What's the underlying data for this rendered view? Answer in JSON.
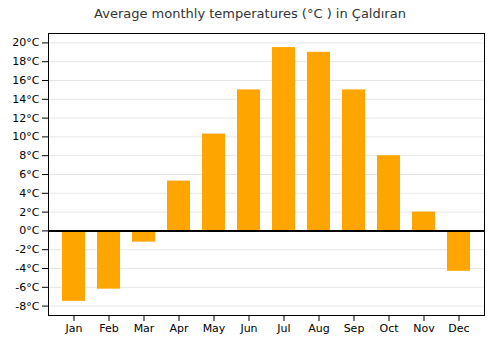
{
  "chart_data": {
    "type": "bar",
    "title": "Average monthly temperatures (°C ) in Çaldıran",
    "categories": [
      "Jan",
      "Feb",
      "Mar",
      "Apr",
      "May",
      "Jun",
      "Jul",
      "Aug",
      "Sep",
      "Oct",
      "Nov",
      "Dec"
    ],
    "values": [
      -7.5,
      -6.2,
      -1.2,
      5.3,
      10.3,
      15.0,
      19.5,
      19.0,
      15.0,
      8.0,
      2.0,
      -4.3
    ],
    "color": "#FFA500",
    "ylim": [
      -9,
      21
    ],
    "yticks": [
      {
        "value": -8,
        "label": "-8°C"
      },
      {
        "value": -6,
        "label": "-6°C"
      },
      {
        "value": -4,
        "label": "-4°C"
      },
      {
        "value": -2,
        "label": "-2°C"
      },
      {
        "value": 0,
        "label": "0°C"
      },
      {
        "value": 2,
        "label": "2°C"
      },
      {
        "value": 4,
        "label": "4°C"
      },
      {
        "value": 6,
        "label": "6°C"
      },
      {
        "value": 8,
        "label": "8°C"
      },
      {
        "value": 10,
        "label": "10°C"
      },
      {
        "value": 12,
        "label": "12°C"
      },
      {
        "value": 14,
        "label": "14°C"
      },
      {
        "value": 16,
        "label": "16°C"
      },
      {
        "value": 18,
        "label": "18°C"
      },
      {
        "value": 20,
        "label": "20°C"
      }
    ],
    "grid": true
  }
}
